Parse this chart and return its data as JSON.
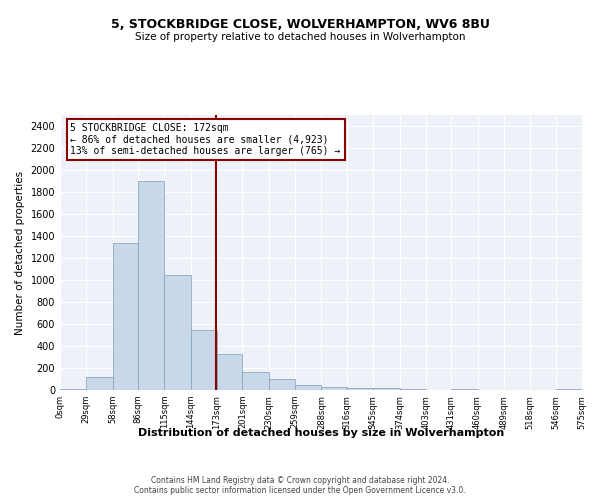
{
  "title_line1": "5, STOCKBRIDGE CLOSE, WOLVERHAMPTON, WV6 8BU",
  "title_line2": "Size of property relative to detached houses in Wolverhampton",
  "xlabel": "Distribution of detached houses by size in Wolverhampton",
  "ylabel": "Number of detached properties",
  "footer_line1": "Contains HM Land Registry data © Crown copyright and database right 2024.",
  "footer_line2": "Contains public sector information licensed under the Open Government Licence v3.0.",
  "annotation_line1": "5 STOCKBRIDGE CLOSE: 172sqm",
  "annotation_line2": "← 86% of detached houses are smaller (4,923)",
  "annotation_line3": "13% of semi-detached houses are larger (765) →",
  "property_size": 172,
  "bar_color": "#c8d8e8",
  "bar_edge_color": "#7ca0bc",
  "vline_color": "#8b0000",
  "annotation_box_color": "#8b0000",
  "background_color": "#eef2f8",
  "bin_edges": [
    0,
    29,
    58,
    86,
    115,
    144,
    173,
    201,
    230,
    259,
    288,
    316,
    345,
    374,
    403,
    431,
    460,
    489,
    518,
    546,
    575
  ],
  "bin_labels": [
    "0sqm",
    "29sqm",
    "58sqm",
    "86sqm",
    "115sqm",
    "144sqm",
    "173sqm",
    "201sqm",
    "230sqm",
    "259sqm",
    "288sqm",
    "316sqm",
    "345sqm",
    "374sqm",
    "403sqm",
    "431sqm",
    "460sqm",
    "489sqm",
    "518sqm",
    "546sqm",
    "575sqm"
  ],
  "bar_heights": [
    10,
    120,
    1340,
    1900,
    1050,
    550,
    330,
    165,
    100,
    50,
    28,
    20,
    20,
    10,
    0,
    5,
    0,
    0,
    0,
    10
  ],
  "ylim": [
    0,
    2500
  ],
  "yticks": [
    0,
    200,
    400,
    600,
    800,
    1000,
    1200,
    1400,
    1600,
    1800,
    2000,
    2200,
    2400
  ]
}
